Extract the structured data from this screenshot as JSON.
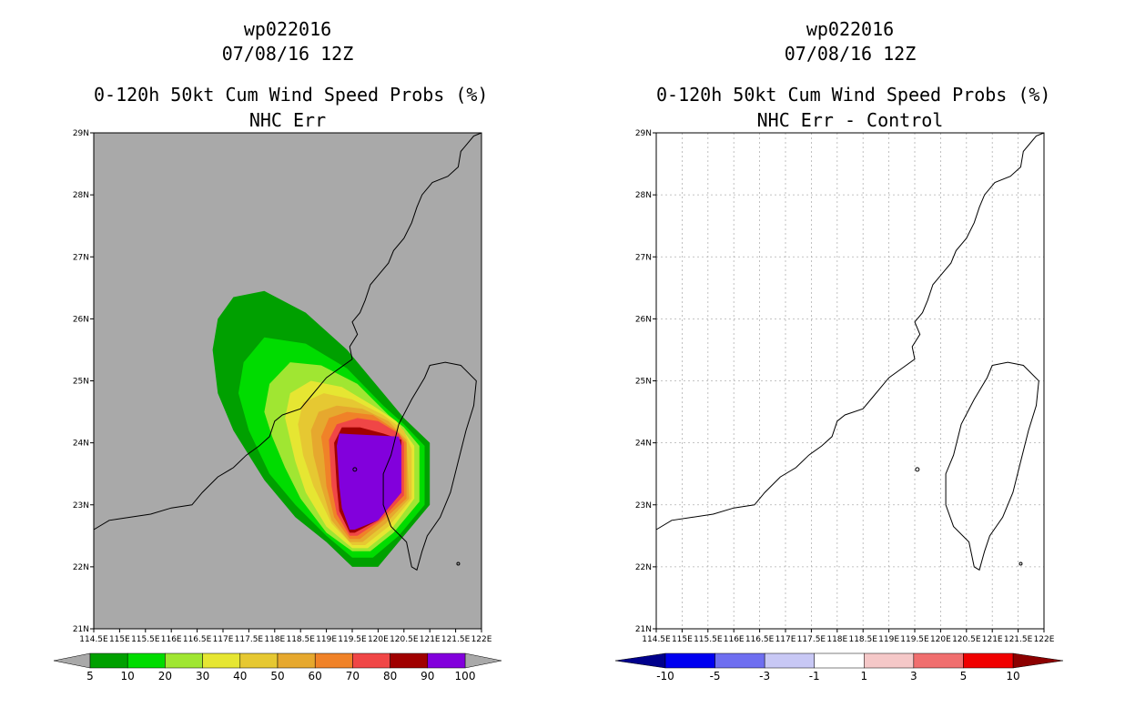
{
  "left_panel": {
    "storm": "wp022016",
    "date": "07/08/16 12Z",
    "title": "0-120h 50kt Cum Wind Speed Probs (%)",
    "subtitle": "NHC Err"
  },
  "right_panel": {
    "storm": "wp022016",
    "date": "07/08/16 12Z",
    "title": "0-120h 50kt Cum Wind Speed Probs (%)",
    "subtitle": "NHC Err - Control"
  },
  "chart_data": [
    {
      "type": "heatmap",
      "title": "0-120h 50kt Cum Wind Speed Probs (%) NHC Err",
      "xlim": [
        114.5,
        122
      ],
      "ylim": [
        21,
        29
      ],
      "x_ticks": [
        "114.5E",
        "115E",
        "115.5E",
        "116E",
        "116.5E",
        "117E",
        "117.5E",
        "118E",
        "118.5E",
        "119E",
        "119.5E",
        "120E",
        "120.5E",
        "121E",
        "121.5E",
        "122E"
      ],
      "y_ticks": [
        "21N",
        "22N",
        "23N",
        "24N",
        "25N",
        "26N",
        "27N",
        "28N",
        "29N"
      ],
      "grid": false,
      "background": "#a9a9a9",
      "colorbar": {
        "labels": [
          "5",
          "10",
          "20",
          "30",
          "40",
          "50",
          "60",
          "70",
          "80",
          "90",
          "100"
        ],
        "colors": [
          "#00a000",
          "#00dc00",
          "#a0e632",
          "#e6e632",
          "#e6c832",
          "#e6a82e",
          "#f08228",
          "#f04646",
          "#a00000",
          "#8200dc"
        ]
      },
      "levels": [
        {
          "min": 5,
          "color": "#00a000",
          "polygon": [
            [
              116.8,
              25.5
            ],
            [
              116.9,
              26.0
            ],
            [
              117.2,
              26.35
            ],
            [
              117.8,
              26.45
            ],
            [
              118.6,
              26.1
            ],
            [
              119.4,
              25.5
            ],
            [
              120.1,
              24.8
            ],
            [
              120.5,
              24.4
            ],
            [
              121.0,
              24.0
            ],
            [
              121.0,
              23.0
            ],
            [
              120.5,
              22.5
            ],
            [
              120.0,
              22.0
            ],
            [
              119.5,
              22.0
            ],
            [
              119.0,
              22.4
            ],
            [
              118.4,
              22.8
            ],
            [
              117.8,
              23.4
            ],
            [
              117.2,
              24.2
            ],
            [
              116.9,
              24.8
            ]
          ]
        },
        {
          "min": 10,
          "color": "#00dc00",
          "polygon": [
            [
              117.3,
              24.8
            ],
            [
              117.4,
              25.3
            ],
            [
              117.8,
              25.7
            ],
            [
              118.6,
              25.6
            ],
            [
              119.4,
              25.2
            ],
            [
              120.1,
              24.6
            ],
            [
              120.5,
              24.3
            ],
            [
              120.9,
              23.95
            ],
            [
              120.9,
              23.0
            ],
            [
              120.4,
              22.5
            ],
            [
              119.9,
              22.15
            ],
            [
              119.5,
              22.15
            ],
            [
              119.0,
              22.5
            ],
            [
              118.4,
              23.0
            ],
            [
              117.9,
              23.5
            ],
            [
              117.5,
              24.2
            ]
          ]
        },
        {
          "min": 20,
          "color": "#a0e632",
          "polygon": [
            [
              117.8,
              24.5
            ],
            [
              117.9,
              24.95
            ],
            [
              118.3,
              25.3
            ],
            [
              118.9,
              25.25
            ],
            [
              119.6,
              24.95
            ],
            [
              120.2,
              24.45
            ],
            [
              120.5,
              24.25
            ],
            [
              120.8,
              23.95
            ],
            [
              120.8,
              23.05
            ],
            [
              120.3,
              22.55
            ],
            [
              119.85,
              22.25
            ],
            [
              119.5,
              22.25
            ],
            [
              119.0,
              22.55
            ],
            [
              118.5,
              23.1
            ],
            [
              118.2,
              23.6
            ],
            [
              117.95,
              24.1
            ]
          ]
        },
        {
          "min": 30,
          "color": "#e6e632",
          "polygon": [
            [
              118.2,
              24.4
            ],
            [
              118.3,
              24.8
            ],
            [
              118.7,
              25.0
            ],
            [
              119.3,
              24.9
            ],
            [
              119.9,
              24.6
            ],
            [
              120.35,
              24.35
            ],
            [
              120.7,
              23.95
            ],
            [
              120.7,
              23.1
            ],
            [
              120.25,
              22.6
            ],
            [
              119.8,
              22.3
            ],
            [
              119.5,
              22.3
            ],
            [
              119.0,
              22.65
            ],
            [
              118.6,
              23.2
            ],
            [
              118.4,
              23.7
            ]
          ]
        },
        {
          "min": 40,
          "color": "#e6c832",
          "polygon": [
            [
              118.45,
              24.3
            ],
            [
              118.55,
              24.65
            ],
            [
              118.95,
              24.8
            ],
            [
              119.5,
              24.7
            ],
            [
              120.1,
              24.45
            ],
            [
              120.5,
              24.2
            ],
            [
              120.65,
              23.9
            ],
            [
              120.65,
              23.1
            ],
            [
              120.2,
              22.65
            ],
            [
              119.75,
              22.35
            ],
            [
              119.5,
              22.35
            ],
            [
              119.1,
              22.7
            ],
            [
              118.75,
              23.3
            ],
            [
              118.55,
              23.8
            ]
          ]
        },
        {
          "min": 50,
          "color": "#e6a82e",
          "polygon": [
            [
              118.7,
              24.2
            ],
            [
              118.85,
              24.5
            ],
            [
              119.2,
              24.6
            ],
            [
              119.7,
              24.55
            ],
            [
              120.2,
              24.35
            ],
            [
              120.55,
              24.05
            ],
            [
              120.6,
              23.1
            ],
            [
              120.15,
              22.7
            ],
            [
              119.7,
              22.4
            ],
            [
              119.45,
              22.4
            ],
            [
              119.1,
              22.75
            ],
            [
              118.9,
              23.3
            ],
            [
              118.75,
              23.8
            ]
          ]
        },
        {
          "min": 60,
          "color": "#f08228",
          "polygon": [
            [
              118.9,
              24.1
            ],
            [
              119.05,
              24.4
            ],
            [
              119.4,
              24.5
            ],
            [
              119.9,
              24.45
            ],
            [
              120.35,
              24.2
            ],
            [
              120.55,
              24.0
            ],
            [
              120.55,
              23.1
            ],
            [
              120.1,
              22.75
            ],
            [
              119.65,
              22.45
            ],
            [
              119.45,
              22.45
            ],
            [
              119.15,
              22.8
            ],
            [
              119.0,
              23.3
            ],
            [
              118.95,
              23.8
            ]
          ]
        },
        {
          "min": 70,
          "color": "#f04646",
          "polygon": [
            [
              119.05,
              24.05
            ],
            [
              119.2,
              24.3
            ],
            [
              119.6,
              24.4
            ],
            [
              120.0,
              24.35
            ],
            [
              120.4,
              24.15
            ],
            [
              120.5,
              24.0
            ],
            [
              120.5,
              23.15
            ],
            [
              120.05,
              22.75
            ],
            [
              119.6,
              22.5
            ],
            [
              119.45,
              22.5
            ],
            [
              119.2,
              22.85
            ],
            [
              119.1,
              23.3
            ]
          ]
        },
        {
          "min": 80,
          "color": "#a00000",
          "polygon": [
            [
              119.15,
              24.0
            ],
            [
              119.3,
              24.25
            ],
            [
              119.65,
              24.25
            ],
            [
              120.1,
              24.15
            ],
            [
              120.45,
              24.05
            ],
            [
              120.45,
              23.2
            ],
            [
              120.0,
              22.75
            ],
            [
              119.55,
              22.55
            ],
            [
              119.45,
              22.55
            ],
            [
              119.25,
              22.9
            ],
            [
              119.2,
              23.3
            ]
          ]
        },
        {
          "min": 90,
          "color": "#8200dc",
          "polygon": [
            [
              119.2,
              23.95
            ],
            [
              119.25,
              24.15
            ],
            [
              120.4,
              24.1
            ],
            [
              120.45,
              23.95
            ],
            [
              120.45,
              23.2
            ],
            [
              120.0,
              22.75
            ],
            [
              119.55,
              22.6
            ],
            [
              119.45,
              22.6
            ],
            [
              119.3,
              22.95
            ],
            [
              119.25,
              23.3
            ]
          ]
        }
      ]
    },
    {
      "type": "heatmap",
      "title": "0-120h 50kt Cum Wind Speed Probs (%) NHC Err - Control",
      "xlim": [
        114.5,
        122
      ],
      "ylim": [
        21,
        29
      ],
      "x_ticks": [
        "114.5E",
        "115E",
        "115.5E",
        "116E",
        "116.5E",
        "117E",
        "117.5E",
        "118E",
        "118.5E",
        "119E",
        "119.5E",
        "120E",
        "120.5E",
        "121E",
        "121.5E",
        "122E"
      ],
      "y_ticks": [
        "21N",
        "22N",
        "23N",
        "24N",
        "25N",
        "26N",
        "27N",
        "28N",
        "29N"
      ],
      "grid": true,
      "background": "#ffffff",
      "colorbar": {
        "labels": [
          "-10",
          "-5",
          "-3",
          "-1",
          "1",
          "3",
          "5",
          "10"
        ],
        "colors": [
          "#00008c",
          "#0000f0",
          "#6e6ef0",
          "#c8c8f5",
          "#ffffff",
          "#f5c8c8",
          "#f06e6e",
          "#f00000",
          "#8c0000"
        ]
      },
      "levels": []
    }
  ]
}
